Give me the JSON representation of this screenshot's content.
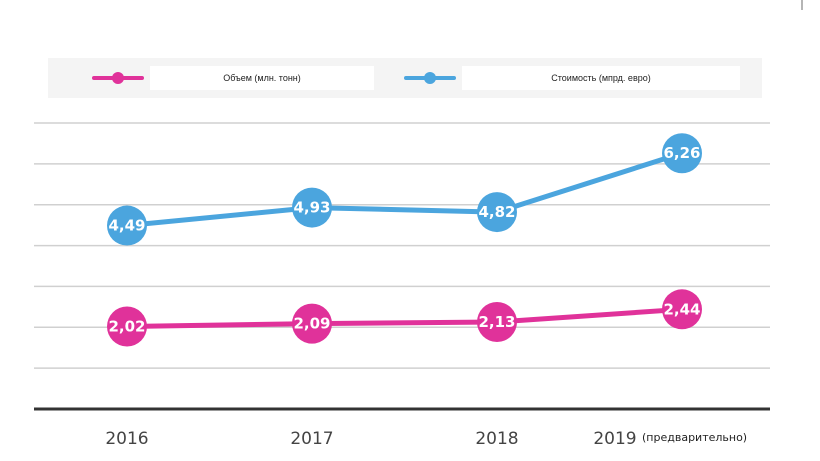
{
  "chart_data": {
    "type": "line",
    "categories": [
      "2016",
      "2017",
      "2018",
      "2019"
    ],
    "category_note": "(предварительно)",
    "series": [
      {
        "name": "Объем (млн. тонн)",
        "values": [
          2.02,
          2.09,
          2.13,
          2.44
        ],
        "labels": [
          "2,02",
          "2,09",
          "2,13",
          "2,44"
        ],
        "color": "#e0329a"
      },
      {
        "name": "Стоимость (мпрд. евро)",
        "values": [
          4.49,
          4.93,
          4.82,
          6.26
        ],
        "labels": [
          "4,49",
          "4,93",
          "4,82",
          "6,26"
        ],
        "color": "#4ba5de"
      }
    ],
    "ylim": [
      0,
      7
    ],
    "grid": true,
    "legend_position": "top"
  }
}
